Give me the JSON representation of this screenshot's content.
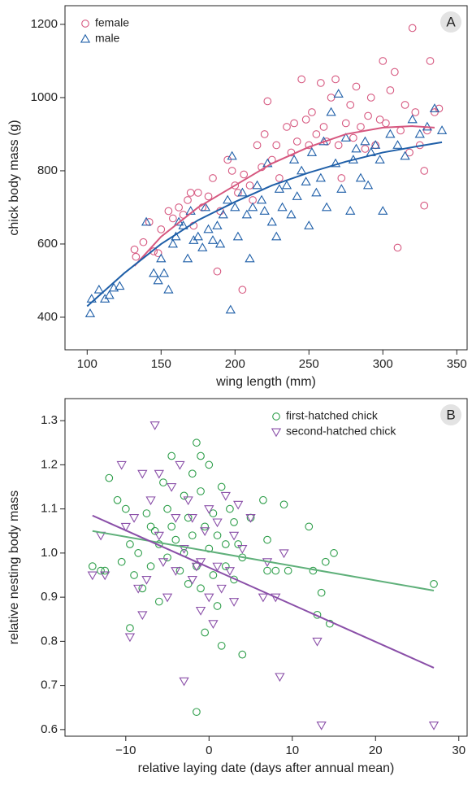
{
  "chart_data": [
    {
      "type": "scatter",
      "panel_label": "A",
      "x_label": "wing length (mm)",
      "y_label": "chick body mass (g)",
      "xlim": [
        85,
        357
      ],
      "ylim": [
        311,
        1251
      ],
      "xticks": [
        100,
        150,
        200,
        250,
        300,
        350
      ],
      "yticks": [
        400,
        600,
        800,
        1000,
        1200
      ],
      "legend": "upper left",
      "series": [
        {
          "name": "female",
          "color": "#d6577f",
          "marker": "circle",
          "x": [
            132,
            133,
            138,
            142,
            145,
            148,
            150,
            155,
            158,
            162,
            165,
            168,
            170,
            172,
            175,
            178,
            182,
            185,
            188,
            190,
            195,
            198,
            200,
            202,
            205,
            206,
            210,
            212,
            215,
            218,
            220,
            222,
            225,
            228,
            230,
            235,
            238,
            240,
            242,
            245,
            248,
            250,
            252,
            255,
            258,
            260,
            262,
            265,
            268,
            270,
            272,
            275,
            278,
            280,
            282,
            285,
            288,
            290,
            292,
            295,
            298,
            300,
            302,
            305,
            308,
            310,
            312,
            315,
            318,
            320,
            322,
            325,
            328,
            330,
            332,
            335,
            338,
            328
          ],
          "values": [
            585,
            565,
            605,
            660,
            580,
            575,
            640,
            690,
            670,
            700,
            680,
            720,
            740,
            650,
            740,
            700,
            730,
            780,
            525,
            690,
            830,
            800,
            760,
            740,
            475,
            790,
            760,
            720,
            870,
            810,
            900,
            990,
            830,
            870,
            780,
            920,
            850,
            930,
            880,
            1050,
            940,
            870,
            960,
            900,
            1040,
            920,
            880,
            1000,
            1050,
            870,
            780,
            930,
            980,
            890,
            1030,
            920,
            860,
            950,
            1000,
            870,
            940,
            1100,
            930,
            1020,
            1070,
            590,
            910,
            980,
            850,
            1190,
            960,
            870,
            800,
            910,
            1100,
            960,
            970,
            705
          ],
          "fit": {
            "x": [
              132,
              150,
              175,
              200,
              225,
              250,
              275,
              300,
              320,
              335
            ],
            "values": [
              540,
              620,
              700,
              760,
              820,
              865,
              900,
              918,
              922,
              918
            ]
          }
        },
        {
          "name": "male",
          "color": "#1f5fa8",
          "marker": "triangle",
          "x": [
            102,
            103,
            108,
            112,
            115,
            118,
            122,
            140,
            145,
            148,
            150,
            152,
            155,
            158,
            160,
            162,
            165,
            168,
            170,
            172,
            175,
            178,
            180,
            182,
            185,
            188,
            190,
            192,
            195,
            197,
            198,
            200,
            202,
            205,
            208,
            210,
            212,
            215,
            218,
            220,
            222,
            225,
            228,
            230,
            232,
            235,
            238,
            240,
            242,
            245,
            248,
            250,
            252,
            255,
            258,
            260,
            262,
            265,
            268,
            270,
            272,
            275,
            278,
            280,
            282,
            285,
            288,
            290,
            292,
            295,
            298,
            300,
            305,
            310,
            315,
            320,
            325,
            330,
            335,
            340
          ],
          "values": [
            410,
            450,
            475,
            450,
            460,
            480,
            485,
            660,
            520,
            500,
            560,
            520,
            475,
            600,
            620,
            660,
            650,
            560,
            690,
            610,
            620,
            590,
            700,
            640,
            610,
            650,
            600,
            680,
            720,
            420,
            840,
            700,
            620,
            740,
            680,
            560,
            700,
            760,
            720,
            690,
            820,
            660,
            620,
            750,
            700,
            760,
            680,
            830,
            730,
            800,
            770,
            650,
            850,
            740,
            780,
            880,
            700,
            960,
            820,
            1010,
            750,
            890,
            690,
            830,
            860,
            780,
            880,
            760,
            850,
            870,
            830,
            690,
            900,
            870,
            840,
            940,
            900,
            920,
            970,
            910
          ],
          "fit": {
            "x": [
              100,
              125,
              150,
              175,
              200,
              225,
              250,
              275,
              300,
              325,
              340
            ],
            "values": [
              430,
              520,
              600,
              665,
              715,
              760,
              795,
              825,
              850,
              868,
              878
            ]
          }
        }
      ]
    },
    {
      "type": "scatter",
      "panel_label": "B",
      "x_label": "relative laying date (days after annual mean)",
      "y_label": "relative nesting body mass",
      "xlim": [
        -17.3,
        31
      ],
      "ylim": [
        0.585,
        1.35
      ],
      "xticks": [
        {
          "value": -10,
          "label": "−10"
        },
        0,
        10,
        20,
        30
      ],
      "yticks": [
        0.6,
        0.7,
        0.8,
        0.9,
        {
          "value": 1,
          "label": "1.0"
        },
        1.1,
        1.2,
        1.3
      ],
      "legend": "upper right",
      "series": [
        {
          "name": "first-hatched chick",
          "color": "#2e9e4a",
          "marker": "circle",
          "x": [
            -14,
            -12.5,
            -12,
            -11,
            -10.5,
            -10,
            -9.5,
            -9.5,
            -9,
            -8.5,
            -8,
            -7.5,
            -7,
            -7,
            -6.5,
            -6,
            -6,
            -5.5,
            -5,
            -5,
            -4.5,
            -4.5,
            -4,
            -3.5,
            -3,
            -3,
            -2.5,
            -2.5,
            -2,
            -2,
            -1.5,
            -1.5,
            -1,
            -1,
            -1,
            -0.5,
            -0.5,
            0,
            0,
            0.5,
            0.5,
            1,
            1,
            1.5,
            1.5,
            2,
            2,
            2.5,
            3,
            3,
            3.5,
            4,
            4,
            5,
            6.5,
            7,
            7,
            8,
            9,
            9.5,
            12,
            12.5,
            13,
            13.5,
            14,
            14.5,
            15,
            27,
            -1.5,
            -13
          ],
          "values": [
            0.97,
            0.96,
            1.17,
            1.12,
            0.98,
            1.1,
            1.02,
            0.83,
            0.95,
            1.0,
            0.92,
            1.09,
            1.06,
            0.97,
            1.05,
            1.02,
            0.89,
            1.16,
            1.1,
            0.99,
            1.22,
            1.06,
            1.03,
            0.96,
            1.13,
            1.0,
            1.08,
            0.93,
            1.18,
            1.04,
            1.25,
            0.97,
            1.22,
            1.14,
            0.92,
            1.06,
            0.82,
            1.2,
            1.01,
            1.09,
            0.95,
            1.04,
            0.88,
            1.15,
            0.79,
            1.02,
            0.97,
            1.1,
            0.94,
            1.07,
            1.02,
            0.99,
            0.77,
            1.08,
            1.12,
            0.96,
            1.03,
            0.96,
            1.11,
            0.96,
            1.06,
            0.96,
            0.86,
            0.91,
            0.98,
            0.84,
            1.0,
            0.93,
            0.64,
            0.96
          ],
          "fit": {
            "x": [
              -14,
              27
            ],
            "values": [
              1.05,
              0.915
            ]
          },
          "fit_color": "#5fb07a"
        },
        {
          "name": "second-hatched chick",
          "color": "#8a4fa8",
          "marker": "triangle-down",
          "x": [
            -14,
            -13,
            -12.5,
            -10.5,
            -10,
            -9.5,
            -9,
            -8.5,
            -8,
            -7.5,
            -7,
            -6.5,
            -6,
            -6,
            -5.5,
            -5,
            -4.5,
            -4,
            -4,
            -3.5,
            -3,
            -3,
            -2.5,
            -2,
            -2,
            -1.5,
            -1,
            -1,
            -0.5,
            0,
            0,
            0.5,
            1,
            1,
            1.5,
            2,
            2.5,
            3,
            3,
            3.5,
            4,
            5,
            6.5,
            7,
            8,
            8.5,
            9,
            13,
            13.5,
            27,
            -8
          ],
          "values": [
            0.95,
            1.04,
            0.95,
            1.2,
            1.06,
            0.81,
            1.08,
            0.92,
            1.18,
            0.94,
            1.12,
            1.29,
            1.18,
            1.04,
            0.98,
            0.9,
            1.15,
            1.08,
            0.96,
            1.2,
            0.71,
            1.01,
            1.12,
            0.94,
            1.08,
            0.97,
            0.87,
            0.98,
            1.05,
            0.9,
            1.1,
            0.84,
            0.97,
            1.07,
            0.92,
            1.13,
            0.96,
            1.04,
            0.89,
            1.11,
            1.01,
            1.08,
            0.9,
            0.98,
            0.9,
            0.72,
            1.0,
            0.8,
            0.61,
            0.61,
            0.86
          ],
          "fit": {
            "x": [
              -14,
              27
            ],
            "values": [
              1.085,
              0.74
            ]
          }
        }
      ]
    }
  ]
}
